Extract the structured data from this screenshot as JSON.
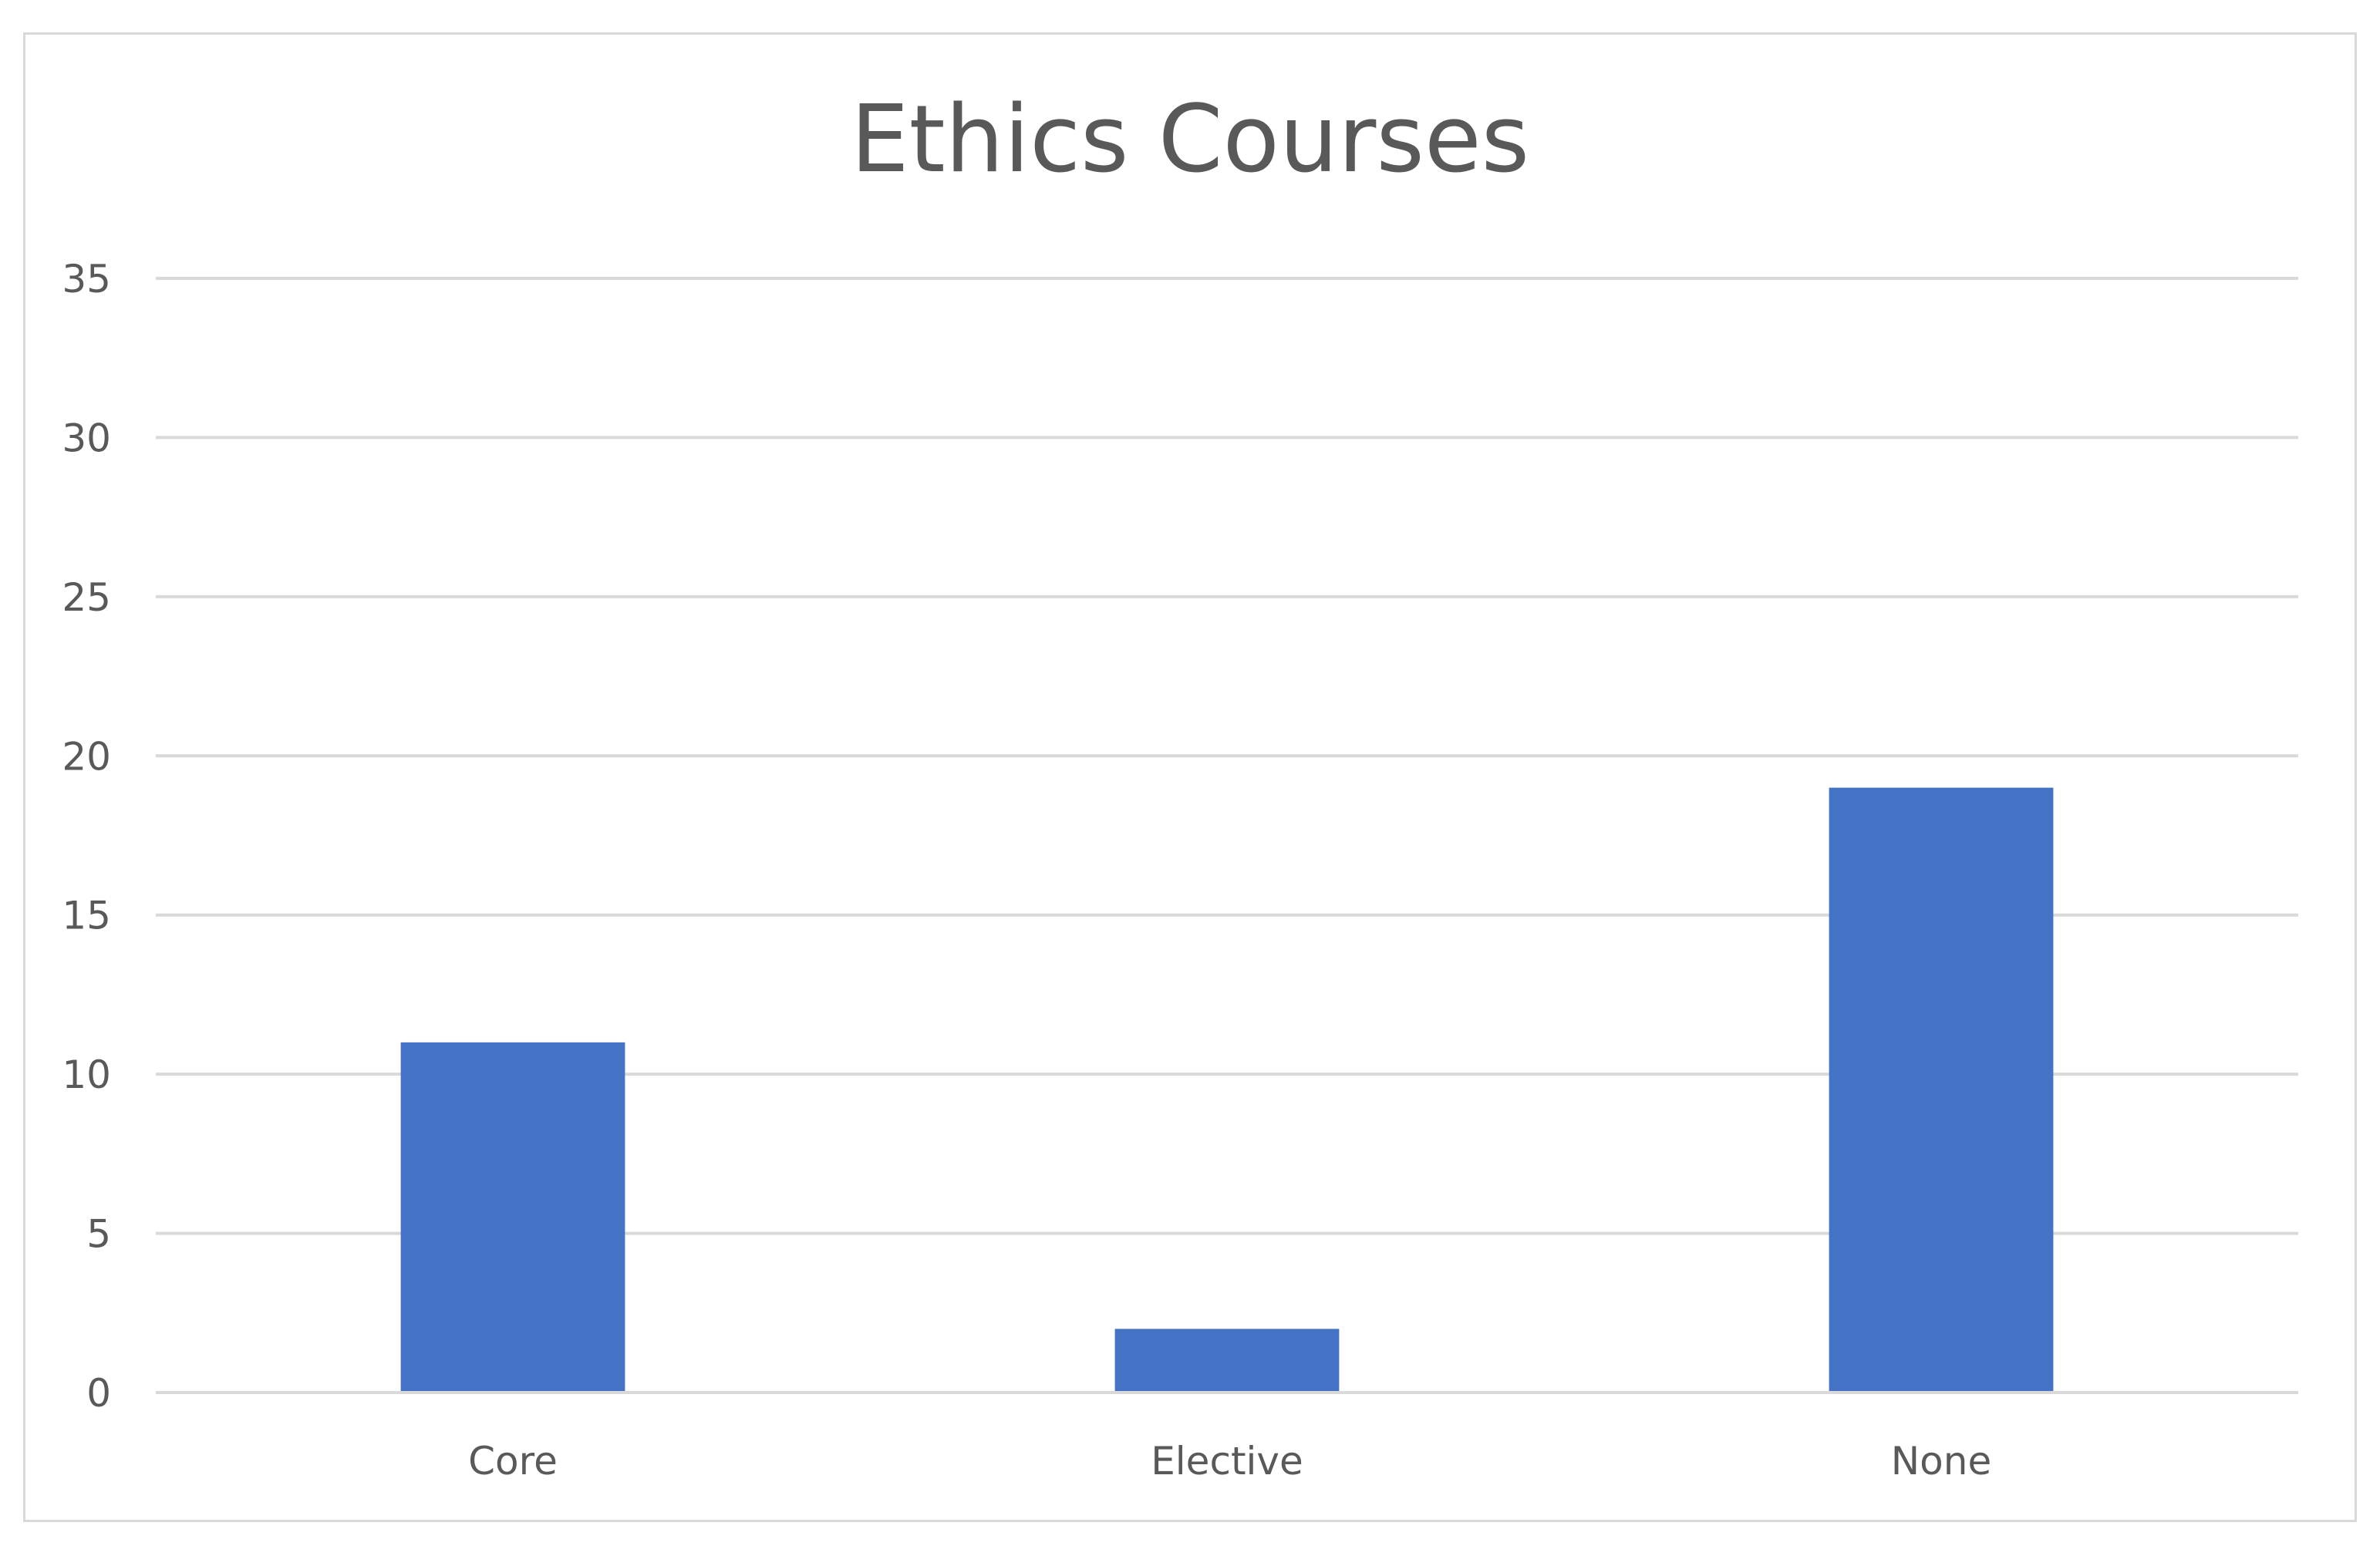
{
  "chart_data": {
    "type": "bar",
    "title": "Ethics Courses",
    "categories": [
      "Core",
      "Elective",
      "None"
    ],
    "values": [
      11,
      2,
      19
    ],
    "xlabel": "",
    "ylabel": "",
    "ylim": [
      0,
      35
    ],
    "yticks": [
      "0",
      "5",
      "10",
      "15",
      "20",
      "25",
      "30",
      "35"
    ],
    "grid": true,
    "legend": "none",
    "bar_color": "#4472C4",
    "grid_color": "#d9d9d9",
    "text_color": "#595959"
  }
}
